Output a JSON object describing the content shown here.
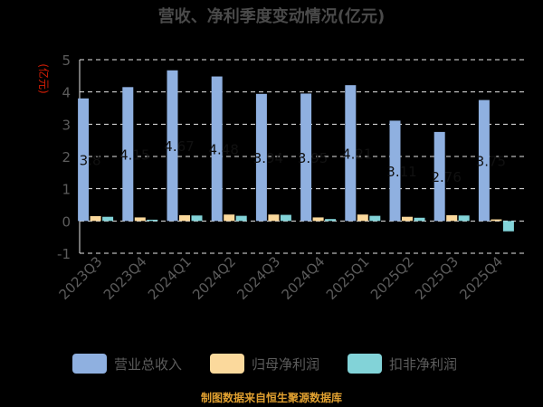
{
  "chart_data": {
    "type": "bar",
    "title": "营收、净利季度变动情况(亿元)",
    "ylabel": "(亿元)",
    "ylim": [
      -1,
      5
    ],
    "yticks": [
      "-1",
      "0",
      "1",
      "2",
      "3",
      "4",
      "5"
    ],
    "grid": true,
    "legend_position": "bottom",
    "categories": [
      "2023Q3",
      "2023Q4",
      "2024Q1",
      "2024Q2",
      "2024Q3",
      "2024Q4",
      "2025Q1",
      "2025Q2",
      "2025Q3",
      "2025Q4"
    ],
    "data_labels": [
      "3.8",
      "4.15",
      "4.67",
      "4.48",
      "3.94",
      "3.95",
      "4.21",
      "3.11",
      "2.76",
      "3.75"
    ],
    "series": [
      {
        "name": "营业总收入",
        "color": "#8fb0e0",
        "values": [
          3.8,
          4.15,
          4.67,
          4.48,
          3.94,
          3.95,
          4.21,
          3.11,
          2.76,
          3.75
        ]
      },
      {
        "name": "归母净利润",
        "color": "#fbd99c",
        "values": [
          0.15,
          0.11,
          0.18,
          0.2,
          0.2,
          0.11,
          0.2,
          0.13,
          0.18,
          0.05
        ]
      },
      {
        "name": "扣非净利润",
        "color": "#82d3d8",
        "values": [
          0.13,
          0.04,
          0.17,
          0.16,
          0.19,
          0.06,
          0.16,
          0.1,
          0.17,
          -0.32
        ]
      }
    ],
    "source": "制图数据来自恒生聚源数据库"
  }
}
